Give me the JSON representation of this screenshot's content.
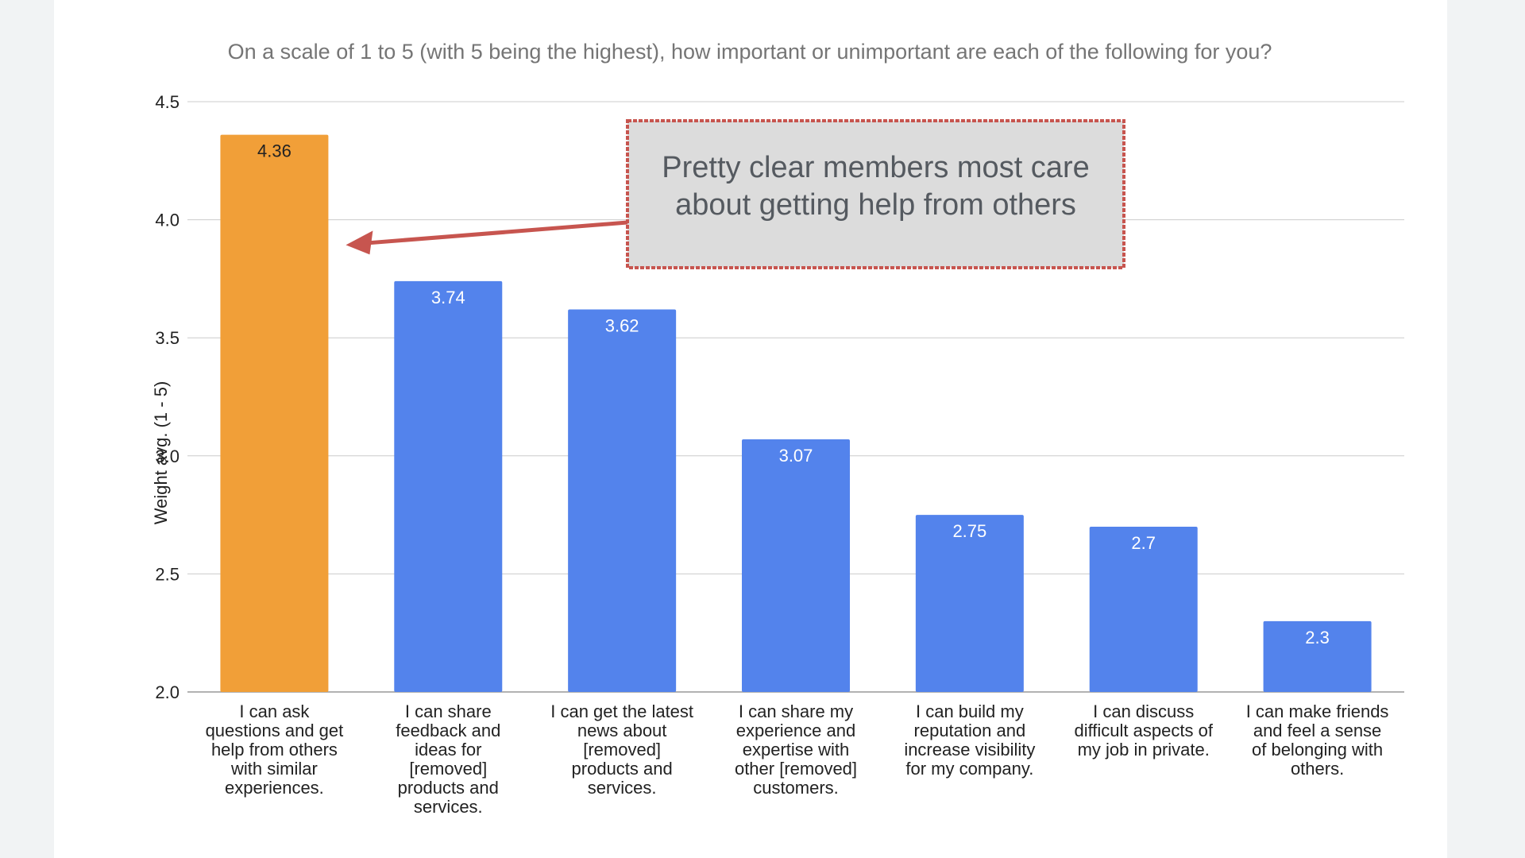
{
  "chart_data": {
    "type": "bar",
    "title": "On a scale of 1 to 5 (with 5 being the highest), how important or unimportant are each of the following for you?",
    "ylabel": "Weight avg. (1 - 5)",
    "xlabel": "",
    "ylim": [
      2.0,
      4.5
    ],
    "yticks": [
      "2.0",
      "2.5",
      "3.0",
      "3.5",
      "4.0",
      "4.5"
    ],
    "grid": true,
    "categories": [
      [
        "I can ask",
        "questions and get",
        "help from others",
        "with similar",
        "experiences."
      ],
      [
        "I can share",
        "feedback and",
        "ideas for",
        "[removed]",
        "products and",
        "services."
      ],
      [
        "I can get the latest",
        "news about",
        "[removed]",
        "products and",
        "services."
      ],
      [
        "I can share my",
        "experience and",
        "expertise with",
        "other [removed]",
        "customers."
      ],
      [
        "I can build my",
        "reputation and",
        "increase visibility",
        "for my company."
      ],
      [
        "I can discuss",
        "difficult aspects of",
        "my job in private."
      ],
      [
        "I can make friends",
        "and feel a sense",
        "of belonging with",
        "others."
      ]
    ],
    "values": [
      4.36,
      3.74,
      3.62,
      3.07,
      2.75,
      2.7,
      2.3
    ],
    "data_labels": [
      "4.36",
      "3.74",
      "3.62",
      "3.07",
      "2.75",
      "2.7",
      "2.3"
    ],
    "highlight_index": 0,
    "colors": {
      "bar": "#5383ec",
      "highlight": "#f19f38",
      "annotation_border": "#c7554f",
      "annotation_fill": "#dcdcdc",
      "grid": "#cccccc"
    },
    "annotation": {
      "text": [
        "Pretty clear members most care",
        "about getting help from others"
      ],
      "arrow_target_value": 3.9
    }
  }
}
